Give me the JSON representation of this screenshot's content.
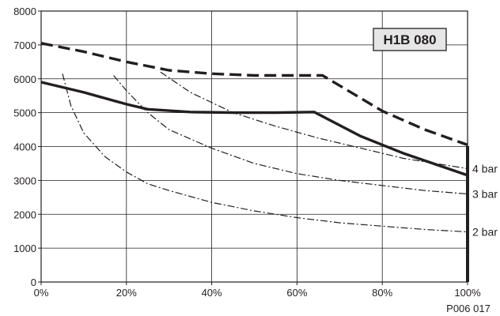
{
  "chart_data": {
    "type": "line",
    "badge": "H1B 080",
    "figure_code": "P006 017",
    "xlim": [
      0,
      100
    ],
    "ylim": [
      0,
      8000
    ],
    "x_ticks": [
      "0%",
      "20%",
      "40%",
      "60%",
      "80%",
      "100%"
    ],
    "y_ticks": [
      "0",
      "1000",
      "2000",
      "3000",
      "4000",
      "5000",
      "6000",
      "7000",
      "8000"
    ],
    "grid": true,
    "series": [
      {
        "style": "dashed-thick",
        "x": [
          0,
          10,
          20,
          30,
          40,
          50,
          60,
          66,
          80,
          90,
          100
        ],
        "y": [
          7050,
          6800,
          6500,
          6250,
          6150,
          6100,
          6100,
          6100,
          5050,
          4500,
          4050
        ]
      },
      {
        "style": "solid-thick",
        "x": [
          0,
          10,
          20,
          25,
          35,
          45,
          55,
          64,
          75,
          85,
          100
        ],
        "y": [
          5900,
          5600,
          5250,
          5100,
          5020,
          5000,
          5000,
          5020,
          4300,
          3800,
          3150
        ]
      },
      {
        "name": "4 bar",
        "style": "dash-dot",
        "x": [
          28,
          35,
          45,
          55,
          65,
          75,
          85,
          95,
          100
        ],
        "y": [
          6200,
          5600,
          5000,
          4600,
          4250,
          3950,
          3650,
          3450,
          3350
        ]
      },
      {
        "name": "3 bar",
        "style": "dash-dot",
        "x": [
          17,
          20,
          25,
          30,
          40,
          50,
          60,
          70,
          80,
          90,
          100
        ],
        "y": [
          6100,
          5650,
          5000,
          4500,
          3950,
          3500,
          3200,
          3000,
          2850,
          2700,
          2600
        ]
      },
      {
        "name": "2 bar",
        "style": "dash-dot",
        "x": [
          5,
          7,
          10,
          15,
          20,
          25,
          30,
          40,
          50,
          60,
          70,
          80,
          90,
          100
        ],
        "y": [
          6150,
          5200,
          4400,
          3700,
          3250,
          2900,
          2700,
          2350,
          2100,
          1900,
          1750,
          1650,
          1550,
          1480
        ]
      }
    ]
  }
}
